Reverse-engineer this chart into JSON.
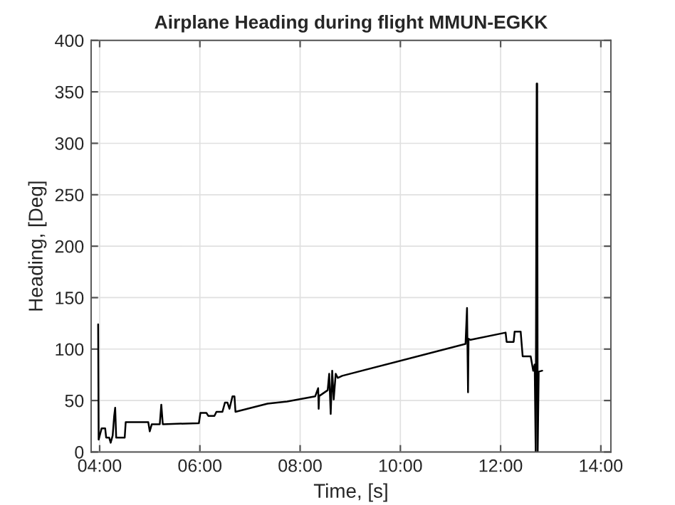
{
  "chart_data": {
    "type": "line",
    "title": "Airplane Heading during flight MMUN-EGKK",
    "xlabel": "Time, [s]",
    "ylabel": "Heading, [Deg]",
    "x": [
      3.97,
      3.98,
      4.04,
      4.11,
      4.13,
      4.19,
      4.22,
      4.26,
      4.29,
      4.31,
      4.33,
      4.5,
      4.52,
      4.97,
      5.0,
      5.04,
      5.2,
      5.23,
      5.26,
      5.98,
      6.01,
      6.13,
      6.17,
      6.29,
      6.33,
      6.45,
      6.5,
      6.55,
      6.59,
      6.65,
      6.69,
      6.71,
      7.35,
      7.74,
      8.3,
      8.36,
      8.37,
      8.38,
      8.4,
      8.55,
      8.58,
      8.61,
      8.64,
      8.67,
      8.71,
      8.75,
      8.84,
      11.3,
      11.33,
      11.35,
      11.36,
      11.4,
      12.1,
      12.12,
      12.26,
      12.28,
      12.4,
      12.44,
      12.6,
      12.65,
      12.68,
      12.7,
      12.72,
      12.73,
      12.74,
      12.76,
      12.83
    ],
    "series": [
      {
        "color": "#000000",
        "values": [
          124,
          12,
          23,
          23,
          14,
          14,
          9,
          16,
          35,
          43,
          14,
          14,
          29,
          29,
          20,
          27,
          27,
          46,
          27,
          28,
          38,
          38,
          35,
          35,
          39,
          39,
          48,
          48,
          42,
          54,
          54,
          39,
          47,
          49,
          54,
          62,
          42,
          55,
          55,
          60,
          76,
          37,
          79,
          51,
          76,
          72,
          74,
          105,
          140,
          58,
          110,
          109,
          116,
          107,
          107,
          117,
          117,
          93,
          93,
          79,
          85,
          0,
          358,
          358,
          0,
          78,
          79
        ]
      }
    ],
    "xlim": [
      3.83,
      14.2
    ],
    "xticks": [
      {
        "value": 4,
        "label": "04:00"
      },
      {
        "value": 6,
        "label": "06:00"
      },
      {
        "value": 8,
        "label": "08:00"
      },
      {
        "value": 10,
        "label": "10:00"
      },
      {
        "value": 12,
        "label": "12:00"
      },
      {
        "value": 14,
        "label": "14:00"
      }
    ],
    "ylim": [
      0,
      400
    ],
    "yticks": [
      0,
      50,
      100,
      150,
      200,
      250,
      300,
      350,
      400
    ],
    "grid": true,
    "line_style": "solid",
    "marker": "none"
  }
}
